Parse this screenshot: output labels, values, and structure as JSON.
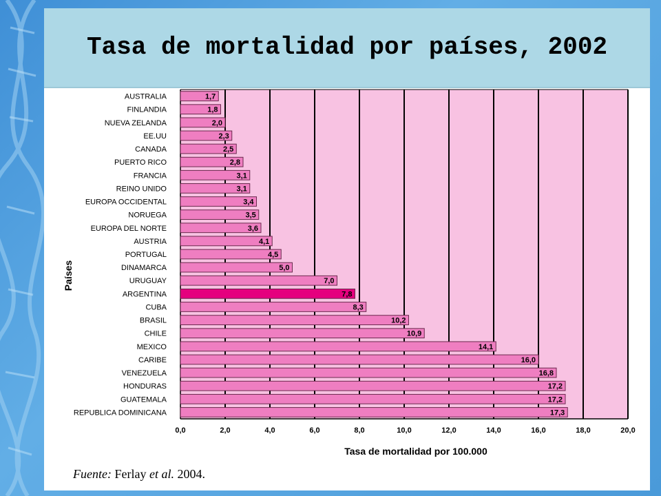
{
  "slide": {
    "title": "Tasa de mortalidad por países, 2002",
    "source_label": "Fuente:",
    "source_author": "Ferlay",
    "source_etal": "et al.",
    "source_year": "2004."
  },
  "colors": {
    "bar": "#ef7ec1",
    "highlight": "#e5007e",
    "plot_bg": "#f8c2e2",
    "grid": "#000000"
  },
  "chart_data": {
    "type": "bar",
    "orientation": "horizontal",
    "title": "Tasa de mortalidad por países, 2002",
    "xlabel": "Tasa de mortalidad por 100.000",
    "ylabel": "Países",
    "xlim": [
      0,
      20
    ],
    "xticks": [
      "0,0",
      "2,0",
      "4,0",
      "6,0",
      "8,0",
      "10,0",
      "12,0",
      "14,0",
      "16,0",
      "18,0",
      "20,0"
    ],
    "grid": true,
    "highlight": "ARGENTINA",
    "categories": [
      "AUSTRALIA",
      "FINLANDIA",
      "NUEVA ZELANDA",
      "EE.UU",
      "CANADA",
      "PUERTO RICO",
      "FRANCIA",
      "REINO UNIDO",
      "EUROPA OCCIDENTAL",
      "NORUEGA",
      "EUROPA DEL NORTE",
      "AUSTRIA",
      "PORTUGAL",
      "DINAMARCA",
      "URUGUAY",
      "ARGENTINA",
      "CUBA",
      "BRASIL",
      "CHILE",
      "MEXICO",
      "CARIBE",
      "VENEZUELA",
      "HONDURAS",
      "GUATEMALA",
      "REPUBLICA DOMINICANA"
    ],
    "values": [
      1.7,
      1.8,
      2.0,
      2.3,
      2.5,
      2.8,
      3.1,
      3.1,
      3.4,
      3.5,
      3.6,
      4.1,
      4.5,
      5.0,
      7.0,
      7.8,
      8.3,
      10.2,
      10.9,
      14.1,
      16.0,
      16.8,
      17.2,
      17.2,
      17.3
    ],
    "value_labels": [
      "1,7",
      "1,8",
      "2,0",
      "2,3",
      "2,5",
      "2,8",
      "3,1",
      "3,1",
      "3,4",
      "3,5",
      "3,6",
      "4,1",
      "4,5",
      "5,0",
      "7,0",
      "7,8",
      "8,3",
      "10,2",
      "10,9",
      "14,1",
      "16,0",
      "16,8",
      "17,2",
      "17,2",
      "17,3"
    ]
  }
}
